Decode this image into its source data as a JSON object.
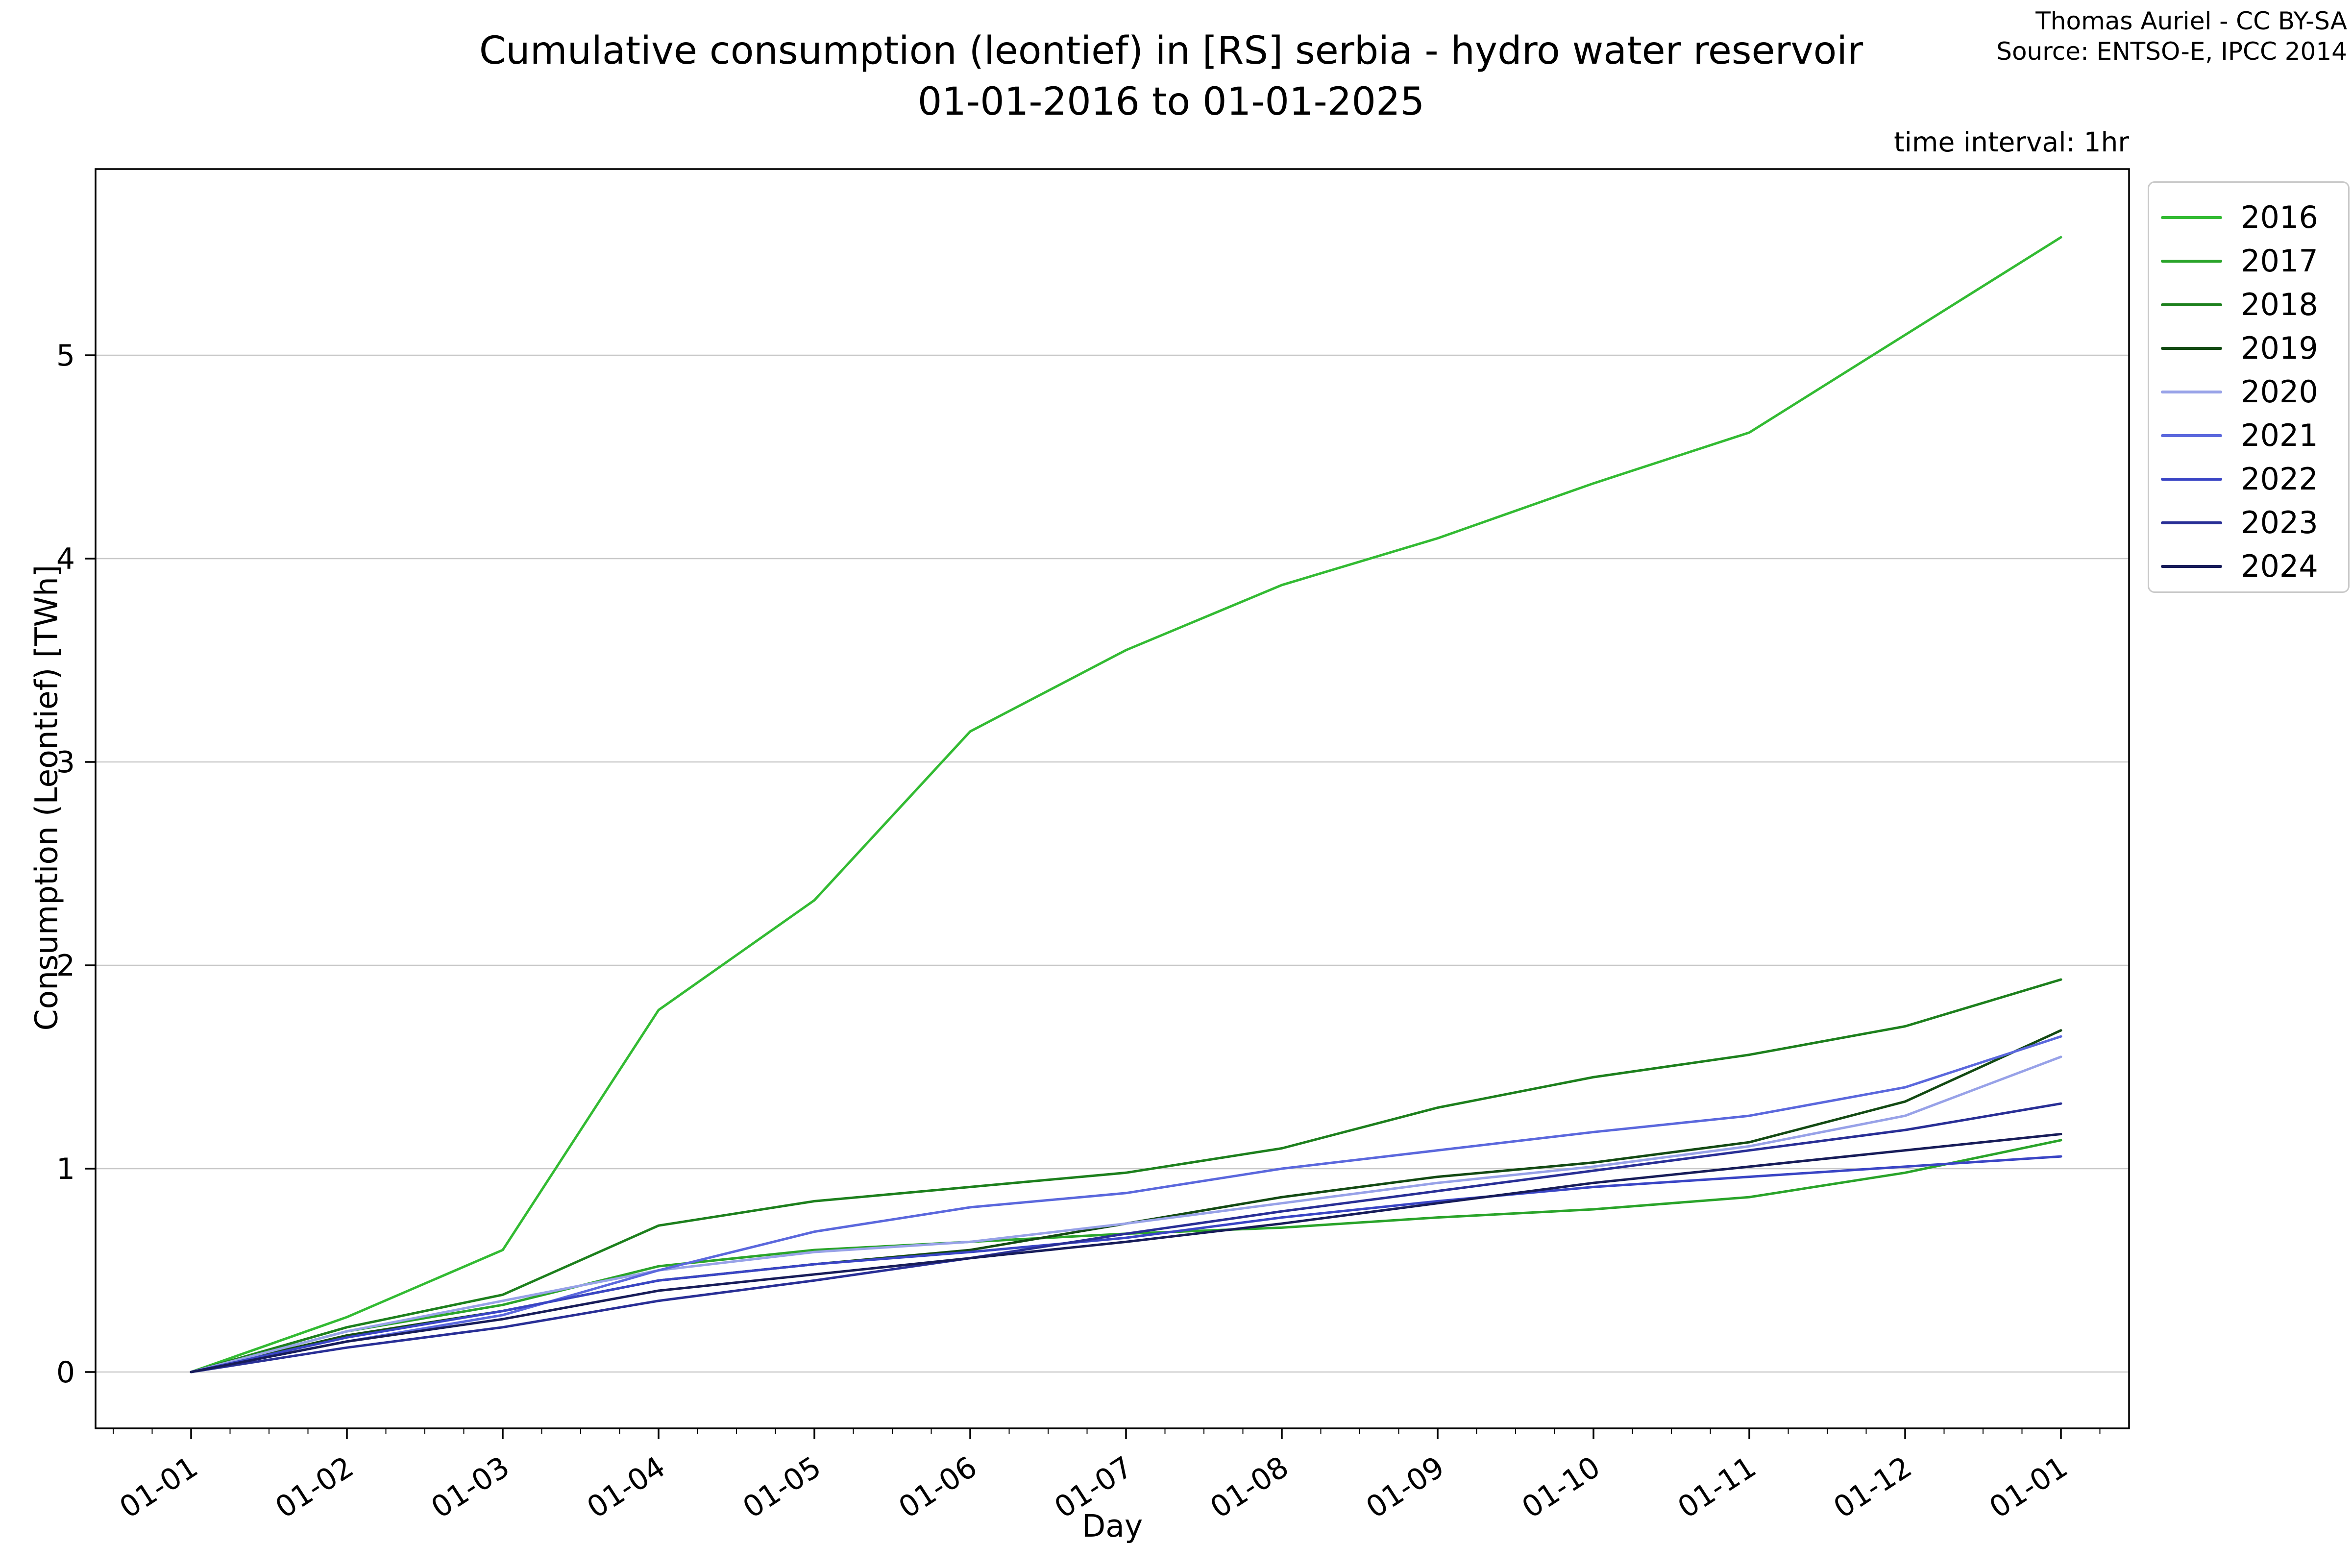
{
  "title": {
    "line1": "Cumulative consumption (leontief) in [RS] serbia - hydro water reservoir",
    "line2": "01-01-2016 to 01-01-2025"
  },
  "attribution": {
    "line1": "Thomas Auriel - CC BY-SA",
    "line2": "Source: ENTSO-E, IPCC 2014"
  },
  "plot_note": "time interval: 1hr",
  "axes": {
    "xlabel": "Day",
    "ylabel": "Consumption (Leontief) [TWh]",
    "x_ticks": [
      "01-01",
      "01-02",
      "01-03",
      "01-04",
      "01-05",
      "01-06",
      "01-07",
      "01-08",
      "01-09",
      "01-10",
      "01-11",
      "01-12",
      "01-01"
    ],
    "y_ticks": [
      "0",
      "1",
      "2",
      "3",
      "4",
      "5"
    ]
  },
  "legend": {
    "entries": [
      {
        "label": "2016",
        "color": "#33bb33"
      },
      {
        "label": "2017",
        "color": "#2aa42a"
      },
      {
        "label": "2018",
        "color": "#1d801d"
      },
      {
        "label": "2019",
        "color": "#134a13"
      },
      {
        "label": "2020",
        "color": "#98a2e8"
      },
      {
        "label": "2021",
        "color": "#5b68dd"
      },
      {
        "label": "2022",
        "color": "#3a45c5"
      },
      {
        "label": "2023",
        "color": "#292f96"
      },
      {
        "label": "2024",
        "color": "#171c59"
      }
    ]
  },
  "chart_data": {
    "type": "line",
    "title": "Cumulative consumption (leontief) in [RS] serbia - hydro water reservoir 01-01-2016 to 01-01-2025",
    "xlabel": "Day",
    "ylabel": "Consumption (Leontief) [TWh]",
    "x": [
      "01-01",
      "01-02",
      "01-03",
      "01-04",
      "01-05",
      "01-06",
      "01-07",
      "01-08",
      "01-09",
      "01-10",
      "01-11",
      "01-12",
      "01-01"
    ],
    "ylim": [
      -0.25,
      5.75
    ],
    "grid": "horizontal",
    "legend_position": "outside-right",
    "units": "TWh",
    "series": [
      {
        "name": "2016",
        "color": "#33bb33",
        "values": [
          0,
          0.27,
          0.6,
          1.78,
          2.32,
          3.15,
          3.55,
          3.87,
          4.1,
          4.37,
          4.62,
          5.1,
          5.58
        ]
      },
      {
        "name": "2017",
        "color": "#2aa42a",
        "values": [
          0,
          0.2,
          0.33,
          0.52,
          0.6,
          0.64,
          0.68,
          0.71,
          0.76,
          0.8,
          0.86,
          0.98,
          1.14
        ]
      },
      {
        "name": "2018",
        "color": "#1d801d",
        "values": [
          0,
          0.22,
          0.38,
          0.72,
          0.84,
          0.91,
          0.98,
          1.1,
          1.3,
          1.45,
          1.56,
          1.7,
          1.93
        ]
      },
      {
        "name": "2019",
        "color": "#134a13",
        "values": [
          0,
          0.18,
          0.3,
          0.45,
          0.53,
          0.6,
          0.73,
          0.86,
          0.96,
          1.03,
          1.13,
          1.33,
          1.68
        ]
      },
      {
        "name": "2020",
        "color": "#98a2e8",
        "values": [
          0,
          0.2,
          0.35,
          0.5,
          0.59,
          0.64,
          0.73,
          0.83,
          0.93,
          1.01,
          1.11,
          1.26,
          1.55
        ]
      },
      {
        "name": "2021",
        "color": "#5b68dd",
        "values": [
          0,
          0.15,
          0.28,
          0.5,
          0.69,
          0.81,
          0.88,
          1.0,
          1.09,
          1.18,
          1.26,
          1.4,
          1.65
        ]
      },
      {
        "name": "2022",
        "color": "#3a45c5",
        "values": [
          0,
          0.17,
          0.3,
          0.45,
          0.53,
          0.59,
          0.66,
          0.76,
          0.84,
          0.91,
          0.96,
          1.01,
          1.06
        ]
      },
      {
        "name": "2023",
        "color": "#292f96",
        "values": [
          0,
          0.12,
          0.22,
          0.35,
          0.45,
          0.56,
          0.68,
          0.79,
          0.89,
          0.99,
          1.09,
          1.19,
          1.32
        ]
      },
      {
        "name": "2024",
        "color": "#171c59",
        "values": [
          0,
          0.15,
          0.26,
          0.4,
          0.48,
          0.56,
          0.64,
          0.73,
          0.83,
          0.93,
          1.01,
          1.09,
          1.17
        ]
      }
    ]
  },
  "style": {
    "grid_color": "#c8c8c8",
    "frame_color": "#000000",
    "background": "#ffffff"
  }
}
